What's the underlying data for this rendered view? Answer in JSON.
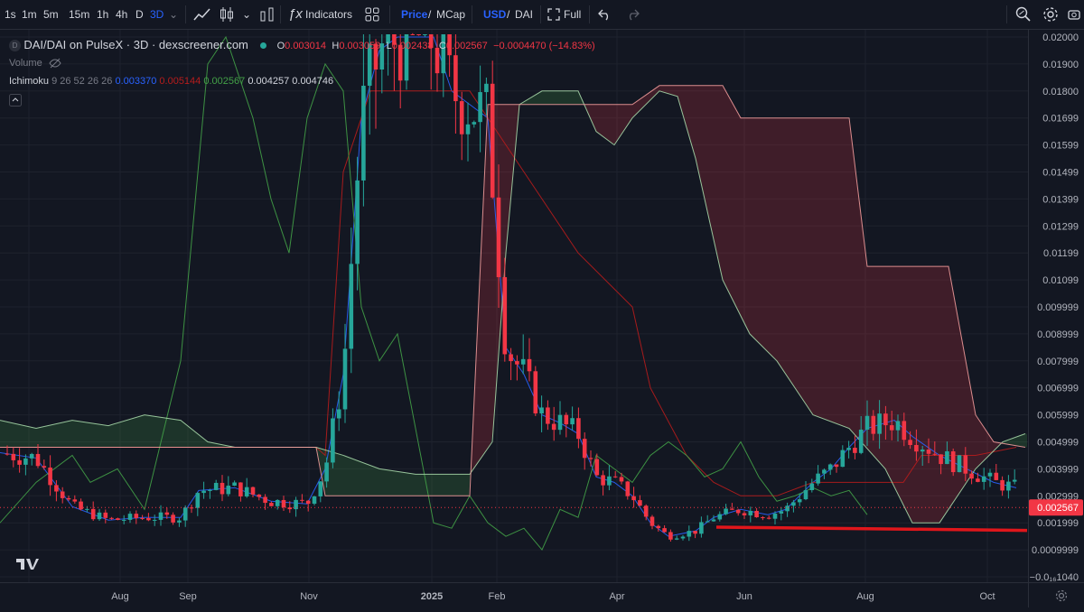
{
  "toolbar": {
    "intervals": [
      "1s",
      "1m",
      "5m",
      "15m",
      "1h",
      "4h",
      "D",
      "3D"
    ],
    "active_interval": "3D",
    "indicators_label": "Indicators",
    "price_label": "Price",
    "mcap_label": "MCap",
    "slash": "/",
    "usd_label": "USD",
    "dai_label": "DAI",
    "full_label": "Full"
  },
  "legend": {
    "symbol_title": "DAI/DAI on PulseX · 3D · dexscreener.com",
    "o_label": "O",
    "o_value": "0.003014",
    "h_label": "H",
    "h_value": "0.003059",
    "l_label": "L",
    "l_value": "0.002438",
    "c_label": "C",
    "c_value": "0.002567",
    "change": "−0.0004470 (−14.83%)",
    "volume_label": "Volume",
    "ichimoku_label": "Ichimoku",
    "ichimoku_params": "9 26 52 26 26",
    "ichimoku_values": [
      "0.003370",
      "0.005144",
      "0.002567",
      "0.004257",
      "0.004746"
    ]
  },
  "colors": {
    "background": "#131722",
    "up": "#26a69a",
    "down": "#f23645",
    "conversion": "#2962ff",
    "base": "#b71c1c",
    "lagging": "#43a047",
    "lead_a": "#a5d6a7",
    "lead_b": "#ef9a9a",
    "support": "#e0161b"
  },
  "chart_data": {
    "type": "candlestick",
    "title": "DAI/DAI on PulseX · 3D · dexscreener.com",
    "x_axis_labels": [
      "Aug",
      "Sep",
      "Nov",
      "2025",
      "Feb",
      "Apr",
      "Jun",
      "Aug",
      "Oct"
    ],
    "y_axis_labels": [
      "0.02000",
      "0.01900",
      "0.01800",
      "0.01699",
      "0.01599",
      "0.01499",
      "0.01399",
      "0.01299",
      "0.01199",
      "0.01099",
      "0.009999",
      "0.008999",
      "0.007999",
      "0.006999",
      "0.005999",
      "0.004999",
      "0.003999",
      "0.002999",
      "0.001999",
      "0.0009999",
      "−0.0₁₆1040"
    ],
    "ylim": [
      0,
      0.0201
    ],
    "last_price": "0.002567",
    "support_level": 0.00175,
    "series": [
      {
        "name": "Tenkan",
        "points": [
          [
            0,
            0.0046
          ],
          [
            40,
            0.0044
          ],
          [
            80,
            0.0026
          ],
          [
            120,
            0.0021
          ],
          [
            160,
            0.0022
          ],
          [
            200,
            0.0022
          ],
          [
            220,
            0.0032
          ],
          [
            260,
            0.0033
          ],
          [
            300,
            0.0028
          ],
          [
            340,
            0.0027
          ],
          [
            360,
            0.004
          ],
          [
            380,
            0.0075
          ],
          [
            400,
            0.017
          ],
          [
            420,
            0.0195
          ],
          [
            440,
            0.02
          ],
          [
            460,
            0.02
          ],
          [
            480,
            0.02
          ],
          [
            500,
            0.018
          ],
          [
            520,
            0.0175
          ],
          [
            540,
            0.017
          ],
          [
            560,
            0.0085
          ],
          [
            580,
            0.0075
          ],
          [
            600,
            0.006
          ],
          [
            620,
            0.0057
          ],
          [
            640,
            0.0053
          ],
          [
            660,
            0.0037
          ],
          [
            680,
            0.0035
          ],
          [
            700,
            0.003
          ],
          [
            720,
            0.002
          ],
          [
            740,
            0.0015
          ],
          [
            770,
            0.0017
          ],
          [
            790,
            0.0022
          ],
          [
            820,
            0.0025
          ],
          [
            850,
            0.0023
          ],
          [
            870,
            0.0025
          ],
          [
            900,
            0.0035
          ],
          [
            920,
            0.004
          ],
          [
            940,
            0.0048
          ],
          [
            960,
            0.0055
          ],
          [
            990,
            0.0058
          ],
          [
            1010,
            0.0052
          ],
          [
            1040,
            0.0045
          ],
          [
            1070,
            0.004
          ],
          [
            1100,
            0.0035
          ],
          [
            1125,
            0.0033
          ]
        ]
      },
      {
        "name": "Kijun",
        "points": [
          [
            0,
            0.0048
          ],
          [
            200,
            0.0048
          ],
          [
            350,
            0.0048
          ],
          [
            360,
            0.0045
          ],
          [
            380,
            0.015
          ],
          [
            410,
            0.018
          ],
          [
            460,
            0.018
          ],
          [
            520,
            0.018
          ],
          [
            550,
            0.0165
          ],
          [
            600,
            0.014
          ],
          [
            640,
            0.012
          ],
          [
            700,
            0.01
          ],
          [
            720,
            0.007
          ],
          [
            760,
            0.0045
          ],
          [
            790,
            0.0035
          ],
          [
            820,
            0.003
          ],
          [
            860,
            0.003
          ],
          [
            900,
            0.0035
          ],
          [
            1000,
            0.0035
          ],
          [
            1020,
            0.0045
          ],
          [
            1080,
            0.0045
          ],
          [
            1125,
            0.0048
          ]
        ]
      },
      {
        "name": "Chikou",
        "points": [
          [
            0,
            0.002
          ],
          [
            40,
            0.0035
          ],
          [
            80,
            0.0045
          ],
          [
            100,
            0.0035
          ],
          [
            130,
            0.004
          ],
          [
            160,
            0.0025
          ],
          [
            200,
            0.008
          ],
          [
            230,
            0.019
          ],
          [
            250,
            0.02
          ],
          [
            280,
            0.017
          ],
          [
            300,
            0.014
          ],
          [
            320,
            0.012
          ],
          [
            340,
            0.017
          ],
          [
            360,
            0.019
          ],
          [
            380,
            0.018
          ],
          [
            400,
            0.01
          ],
          [
            420,
            0.008
          ],
          [
            440,
            0.009
          ],
          [
            460,
            0.0055
          ],
          [
            480,
            0.002
          ],
          [
            500,
            0.0018
          ],
          [
            520,
            0.003
          ],
          [
            540,
            0.002
          ],
          [
            560,
            0.0015
          ],
          [
            580,
            0.0018
          ],
          [
            600,
            0.001
          ],
          [
            620,
            0.0025
          ],
          [
            640,
            0.0022
          ],
          [
            660,
            0.0045
          ],
          [
            680,
            0.004
          ],
          [
            700,
            0.0035
          ],
          [
            720,
            0.0045
          ],
          [
            740,
            0.005
          ],
          [
            760,
            0.0045
          ],
          [
            780,
            0.0037
          ],
          [
            800,
            0.004
          ],
          [
            820,
            0.005
          ],
          [
            840,
            0.0037
          ],
          [
            860,
            0.0028
          ],
          [
            880,
            0.003
          ],
          [
            900,
            0.0033
          ],
          [
            920,
            0.003
          ],
          [
            940,
            0.0032
          ],
          [
            960,
            0.0023
          ]
        ]
      },
      {
        "name": "Senkou A",
        "points": [
          [
            0,
            0.0058
          ],
          [
            40,
            0.0055
          ],
          [
            80,
            0.0058
          ],
          [
            120,
            0.0056
          ],
          [
            160,
            0.006
          ],
          [
            200,
            0.0058
          ],
          [
            230,
            0.005
          ],
          [
            260,
            0.0048
          ],
          [
            350,
            0.0048
          ],
          [
            380,
            0.0045
          ],
          [
            420,
            0.004
          ],
          [
            460,
            0.0038
          ],
          [
            520,
            0.0038
          ],
          [
            545,
            0.005
          ],
          [
            560,
            0.012
          ],
          [
            575,
            0.0175
          ],
          [
            600,
            0.018
          ],
          [
            640,
            0.018
          ],
          [
            660,
            0.0165
          ],
          [
            680,
            0.016
          ],
          [
            700,
            0.017
          ],
          [
            730,
            0.018
          ],
          [
            750,
            0.0178
          ],
          [
            770,
            0.0155
          ],
          [
            800,
            0.011
          ],
          [
            830,
            0.009
          ],
          [
            860,
            0.008
          ],
          [
            900,
            0.006
          ],
          [
            940,
            0.0055
          ],
          [
            980,
            0.004
          ],
          [
            1010,
            0.002
          ],
          [
            1040,
            0.002
          ],
          [
            1080,
            0.004
          ],
          [
            1110,
            0.005
          ],
          [
            1135,
            0.0053
          ]
        ]
      },
      {
        "name": "Senkou B",
        "points": [
          [
            0,
            0.0048
          ],
          [
            200,
            0.0048
          ],
          [
            230,
            0.0048
          ],
          [
            350,
            0.0048
          ],
          [
            360,
            0.003
          ],
          [
            420,
            0.003
          ],
          [
            520,
            0.003
          ],
          [
            540,
            0.0175
          ],
          [
            600,
            0.0175
          ],
          [
            660,
            0.0175
          ],
          [
            700,
            0.0175
          ],
          [
            730,
            0.0182
          ],
          [
            800,
            0.0182
          ],
          [
            820,
            0.017
          ],
          [
            940,
            0.017
          ],
          [
            960,
            0.0115
          ],
          [
            1050,
            0.0115
          ],
          [
            1080,
            0.006
          ],
          [
            1100,
            0.005
          ],
          [
            1135,
            0.0048
          ]
        ]
      }
    ]
  }
}
